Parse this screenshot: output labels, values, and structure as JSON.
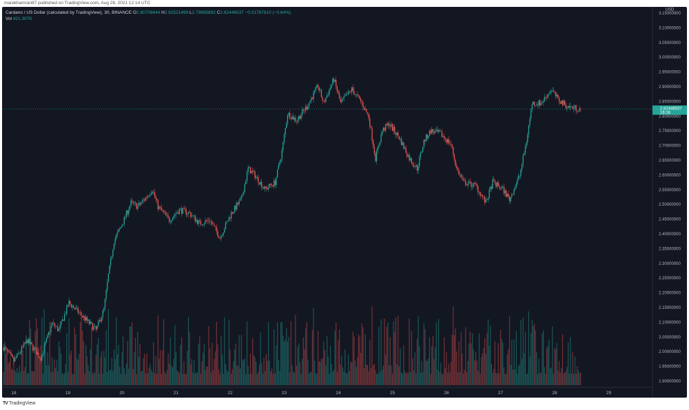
{
  "publisher_line": "marekhamran87 published on TradingView.com, Aug 28, 2021 12:14 UTC",
  "legend": {
    "symbol": "Cardano / US Dollar (calculated by TradingView), 30, BINANCE",
    "open_label": "O",
    "open": "2.80709644",
    "high_label": "H",
    "high": "2.82521499",
    "low_label": "L",
    "low": "2.79895892",
    "close_label": "C",
    "close": "2.82448537",
    "change": "−0.01787610 (−0.64%)",
    "vol_label": "Vol",
    "vol": "421.307K"
  },
  "footer": {
    "logo_text": "TradingView"
  },
  "colors": {
    "background": "#131722",
    "up": "#26a69a",
    "down": "#ef5350",
    "axis_text": "#b2b5be"
  },
  "chart_data": {
    "type": "candlestick",
    "interval": "30",
    "currency_label": "USD",
    "last_price_label": "2.82448537",
    "countdown_label": "16:16",
    "ylim": [
      1.875,
      3.17
    ],
    "y_ticks": [
      "3.15000000",
      "3.10000000",
      "3.05000000",
      "3.00000000",
      "2.95000000",
      "2.90000000",
      "2.85000000",
      "2.80000000",
      "2.75000000",
      "2.70000000",
      "2.65000000",
      "2.60000000",
      "2.55000000",
      "2.50000000",
      "2.45000000",
      "2.40000000",
      "2.35000000",
      "2.30000000",
      "2.25000000",
      "2.20000000",
      "2.15000000",
      "2.10000000",
      "2.05000000",
      "2.00000000",
      "1.95000000",
      "1.90000000"
    ],
    "x_ticks": [
      {
        "date": "2021-08-18",
        "label": "18"
      },
      {
        "date": "2021-08-19",
        "label": "19"
      },
      {
        "date": "2021-08-20",
        "label": "20"
      },
      {
        "date": "2021-08-21",
        "label": "21"
      },
      {
        "date": "2021-08-22",
        "label": "22"
      },
      {
        "date": "2021-08-23",
        "label": "23"
      },
      {
        "date": "2021-08-24",
        "label": "24"
      },
      {
        "date": "2021-08-25",
        "label": "25"
      },
      {
        "date": "2021-08-26",
        "label": "26"
      },
      {
        "date": "2021-08-27",
        "label": "27"
      },
      {
        "date": "2021-08-28",
        "label": "28"
      },
      {
        "date": "2021-08-29",
        "label": "29"
      }
    ],
    "price_path": [
      [
        "2021-08-17T19:30",
        2.015
      ],
      [
        "2021-08-18T00:00",
        1.968
      ],
      [
        "2021-08-18T06:00",
        2.038
      ],
      [
        "2021-08-18T12:00",
        1.979
      ],
      [
        "2021-08-18T17:00",
        2.096
      ],
      [
        "2021-08-18T20:00",
        2.073
      ],
      [
        "2021-08-19T00:30",
        2.166
      ],
      [
        "2021-08-19T06:30",
        2.12
      ],
      [
        "2021-08-19T12:30",
        2.073
      ],
      [
        "2021-08-19T16:00",
        2.143
      ],
      [
        "2021-08-19T18:00",
        2.26
      ],
      [
        "2021-08-19T20:30",
        2.377
      ],
      [
        "2021-08-19T23:30",
        2.423
      ],
      [
        "2021-08-20T04:00",
        2.505
      ],
      [
        "2021-08-20T07:00",
        2.493
      ],
      [
        "2021-08-20T10:00",
        2.517
      ],
      [
        "2021-08-20T13:30",
        2.552
      ],
      [
        "2021-08-20T16:00",
        2.493
      ],
      [
        "2021-08-20T21:00",
        2.447
      ],
      [
        "2021-08-21T01:30",
        2.482
      ],
      [
        "2021-08-21T06:00",
        2.47
      ],
      [
        "2021-08-21T10:30",
        2.435
      ],
      [
        "2021-08-21T15:00",
        2.447
      ],
      [
        "2021-08-21T19:30",
        2.388
      ],
      [
        "2021-08-22T00:30",
        2.47
      ],
      [
        "2021-08-22T05:00",
        2.517
      ],
      [
        "2021-08-22T08:00",
        2.622
      ],
      [
        "2021-08-22T11:00",
        2.599
      ],
      [
        "2021-08-22T15:30",
        2.552
      ],
      [
        "2021-08-22T20:00",
        2.575
      ],
      [
        "2021-08-22T23:00",
        2.68
      ],
      [
        "2021-08-23T01:30",
        2.809
      ],
      [
        "2021-08-23T05:30",
        2.786
      ],
      [
        "2021-08-23T10:00",
        2.832
      ],
      [
        "2021-08-23T15:00",
        2.902
      ],
      [
        "2021-08-23T17:30",
        2.844
      ],
      [
        "2021-08-23T22:00",
        2.926
      ],
      [
        "2021-08-24T01:00",
        2.844
      ],
      [
        "2021-08-24T06:00",
        2.891
      ],
      [
        "2021-08-24T10:30",
        2.844
      ],
      [
        "2021-08-24T13:30",
        2.797
      ],
      [
        "2021-08-24T16:30",
        2.657
      ],
      [
        "2021-08-24T19:30",
        2.75
      ],
      [
        "2021-08-24T22:30",
        2.774
      ],
      [
        "2021-08-25T03:00",
        2.727
      ],
      [
        "2021-08-25T07:30",
        2.657
      ],
      [
        "2021-08-25T11:00",
        2.622
      ],
      [
        "2021-08-25T14:00",
        2.715
      ],
      [
        "2021-08-25T17:00",
        2.75
      ],
      [
        "2021-08-25T21:30",
        2.739
      ],
      [
        "2021-08-26T02:00",
        2.704
      ],
      [
        "2021-08-26T04:30",
        2.622
      ],
      [
        "2021-08-26T07:30",
        2.575
      ],
      [
        "2021-08-26T13:00",
        2.564
      ],
      [
        "2021-08-26T17:30",
        2.505
      ],
      [
        "2021-08-26T20:30",
        2.575
      ],
      [
        "2021-08-27T01:00",
        2.552
      ],
      [
        "2021-08-27T04:00",
        2.517
      ],
      [
        "2021-08-27T08:30",
        2.599
      ],
      [
        "2021-08-27T11:30",
        2.715
      ],
      [
        "2021-08-27T14:00",
        2.844
      ],
      [
        "2021-08-27T18:00",
        2.844
      ],
      [
        "2021-08-27T22:30",
        2.891
      ],
      [
        "2021-08-28T01:30",
        2.856
      ],
      [
        "2021-08-28T06:00",
        2.832
      ],
      [
        "2021-08-28T11:30",
        2.824
      ]
    ]
  }
}
